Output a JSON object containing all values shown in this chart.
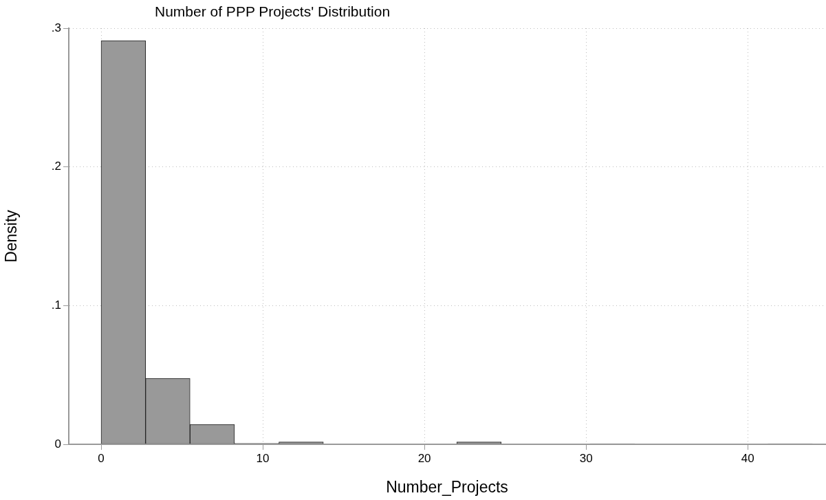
{
  "chart_data": {
    "type": "histogram",
    "title": "Number of PPP Projects' Distribution",
    "xlabel": "Number_Projects",
    "ylabel": "Density",
    "bins": [
      0,
      2.75,
      5.5,
      8.25,
      11,
      13.75,
      16.5,
      19.25,
      22,
      24.75,
      27.5,
      30.25,
      33,
      35.75,
      38.5,
      41.25,
      44
    ],
    "values": [
      0.291,
      0.0476,
      0.0144,
      0.0007,
      0.0017,
      0,
      0,
      0,
      0.0017,
      0,
      0,
      0.0005,
      0,
      0,
      0,
      0.0005
    ],
    "color": "#999999",
    "xlim": [
      -2,
      44.8
    ],
    "ylim": [
      0,
      0.3
    ],
    "xticks": [
      0,
      10,
      20,
      30,
      40
    ],
    "yticks": [
      {
        "value": 0,
        "label": "0"
      },
      {
        "value": 0.1,
        "label": ".1"
      },
      {
        "value": 0.2,
        "label": ".2"
      },
      {
        "value": 0.3,
        "label": ".3"
      }
    ],
    "grid": true,
    "legend": false
  }
}
